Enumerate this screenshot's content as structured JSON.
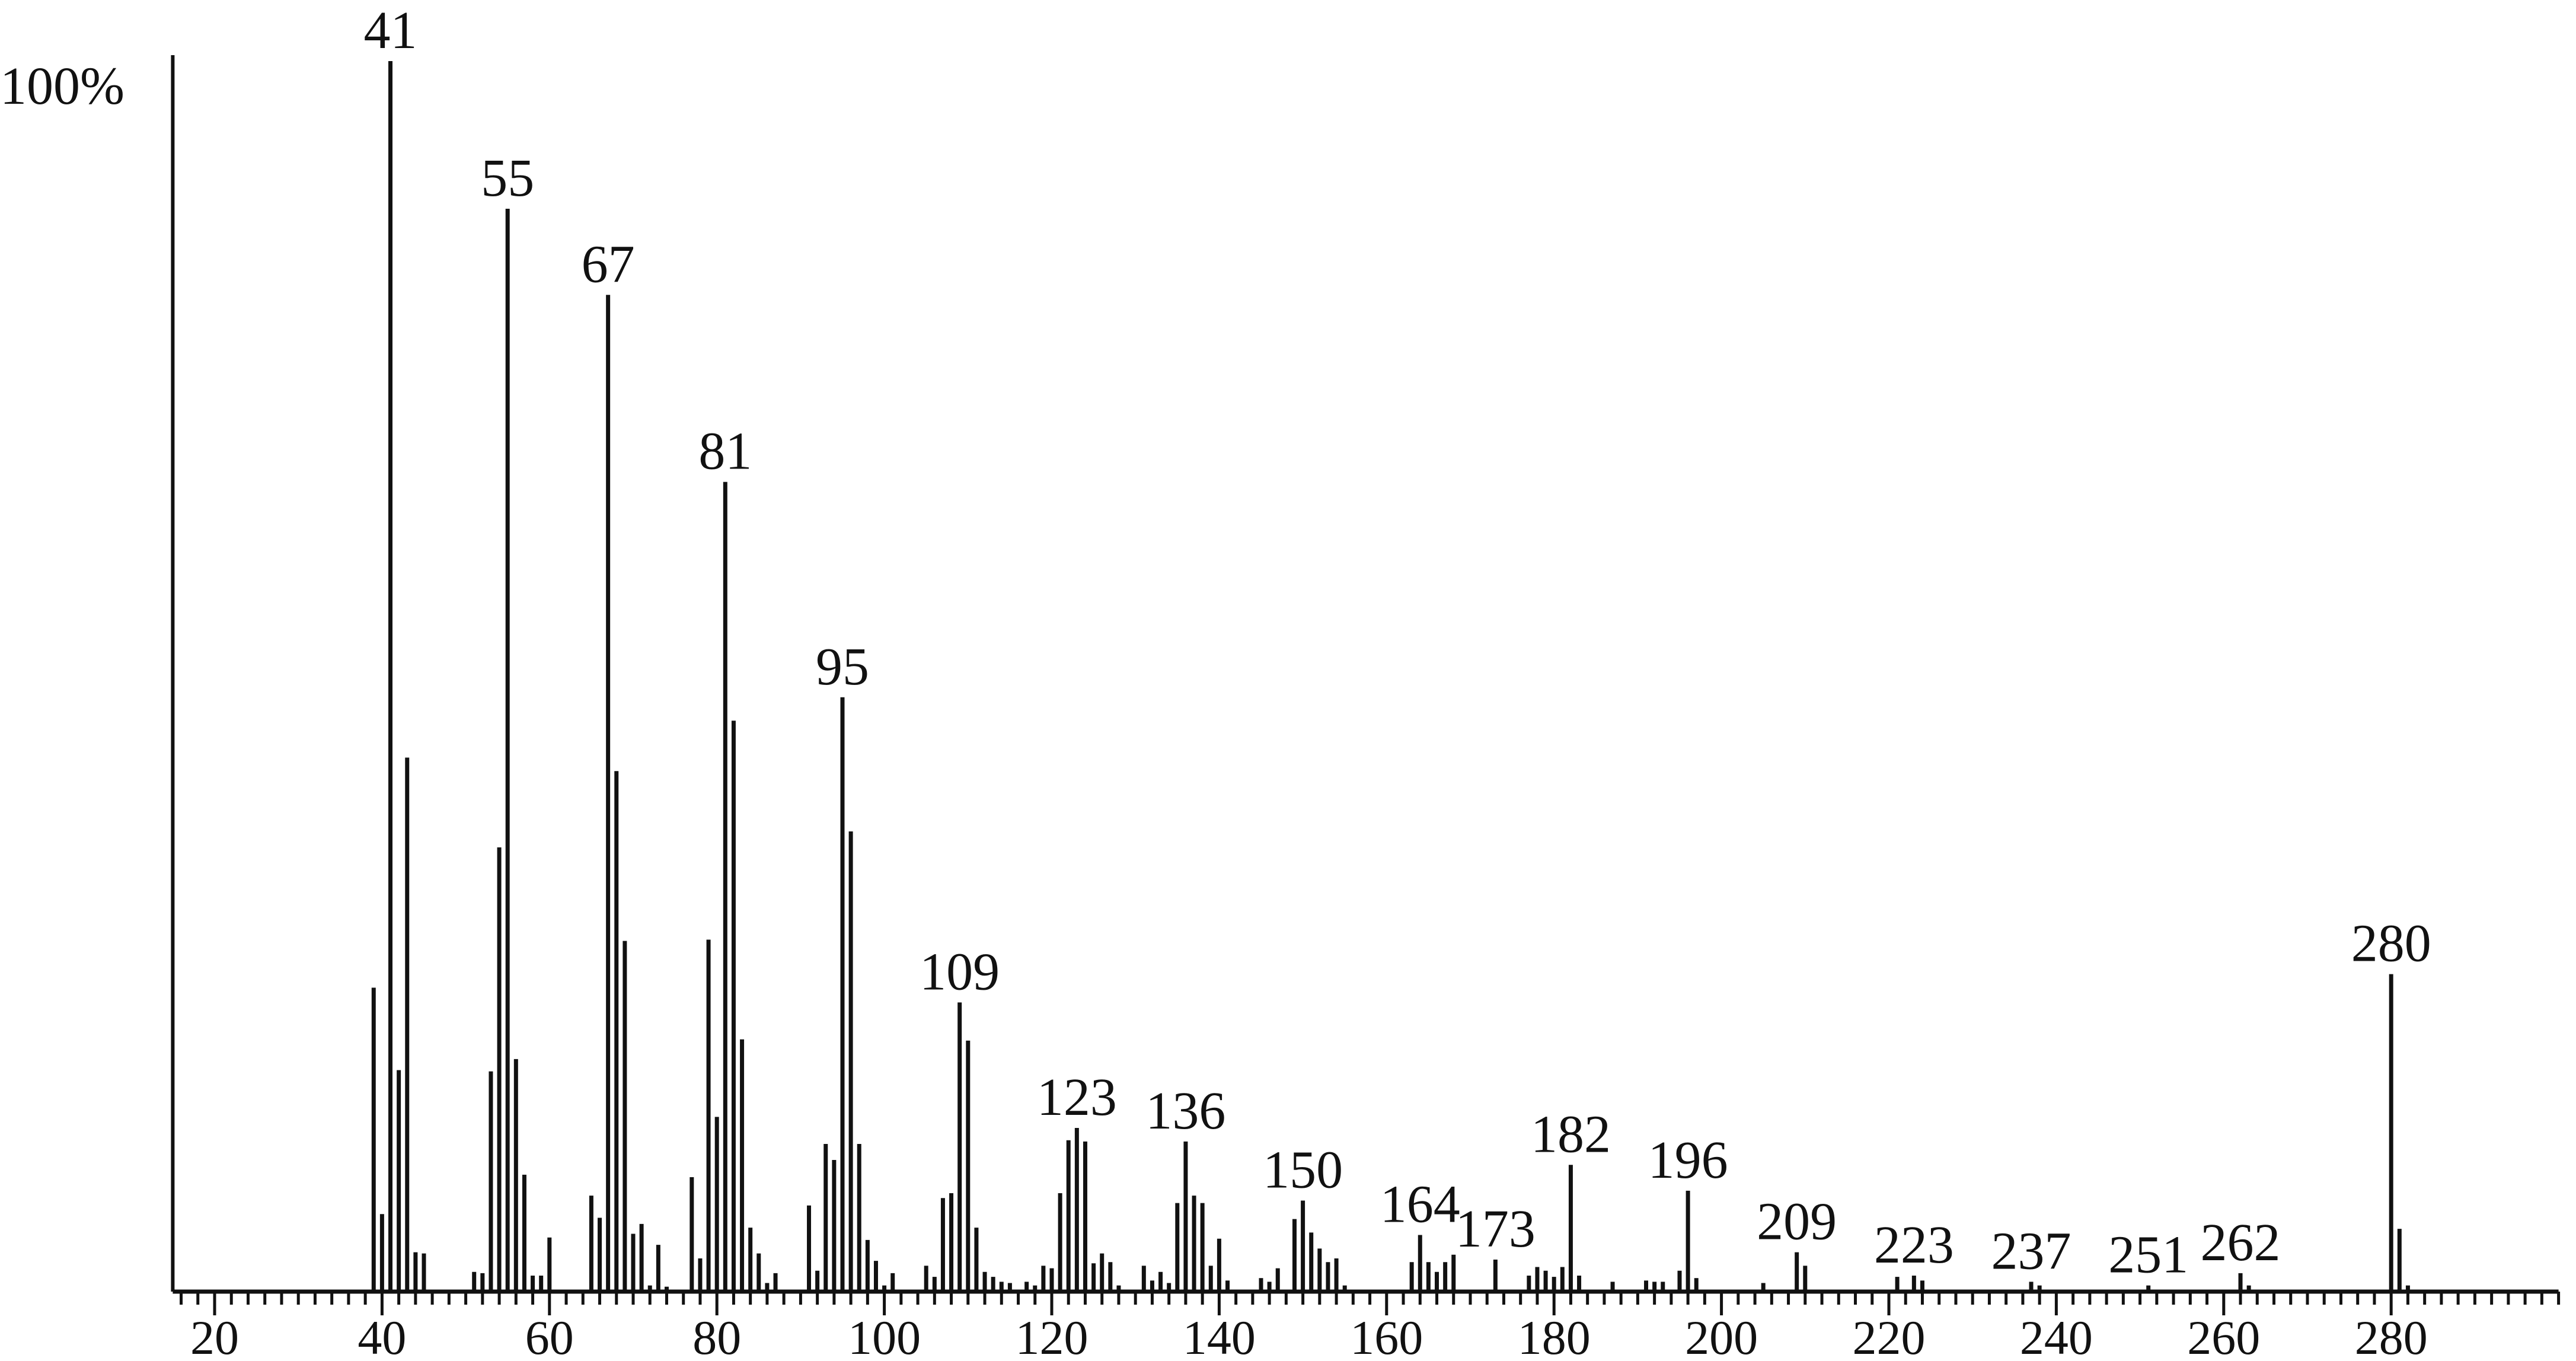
{
  "chart_data": {
    "type": "bar",
    "title": "",
    "xlabel": "",
    "ylabel": "",
    "y_top_label": "100%",
    "xlim": [
      15,
      300
    ],
    "ylim": [
      0,
      100
    ],
    "x_ticks": [
      20,
      40,
      60,
      80,
      100,
      120,
      140,
      160,
      180,
      200,
      220,
      240,
      260,
      280
    ],
    "minor_tick_step": 2,
    "grid": false,
    "bar_color": "#111111",
    "labeled_peaks": [
      41,
      55,
      67,
      81,
      95,
      109,
      123,
      136,
      150,
      164,
      173,
      182,
      196,
      209,
      223,
      237,
      251,
      262,
      280
    ],
    "peaks": [
      [
        39,
        24.7
      ],
      [
        40,
        6.3
      ],
      [
        41,
        100
      ],
      [
        42,
        18
      ],
      [
        43,
        43.4
      ],
      [
        44,
        3.2
      ],
      [
        45,
        3.1
      ],
      [
        51,
        1.6
      ],
      [
        52,
        1.5
      ],
      [
        53,
        17.9
      ],
      [
        54,
        36.1
      ],
      [
        55,
        88
      ],
      [
        56,
        18.9
      ],
      [
        57,
        9.5
      ],
      [
        58,
        1.3
      ],
      [
        59,
        1.3
      ],
      [
        60,
        4.4
      ],
      [
        65,
        7.8
      ],
      [
        66,
        6
      ],
      [
        67,
        81
      ],
      [
        68,
        42.3
      ],
      [
        69,
        28.5
      ],
      [
        70,
        4.7
      ],
      [
        71,
        5.5
      ],
      [
        72,
        0.5
      ],
      [
        73,
        3.8
      ],
      [
        74,
        0.4
      ],
      [
        77,
        9.3
      ],
      [
        78,
        2.7
      ],
      [
        79,
        28.6
      ],
      [
        80,
        14.2
      ],
      [
        81,
        65.8
      ],
      [
        82,
        46.4
      ],
      [
        83,
        20.5
      ],
      [
        84,
        5.2
      ],
      [
        85,
        3.1
      ],
      [
        86,
        0.7
      ],
      [
        87,
        1.5
      ],
      [
        91,
        7
      ],
      [
        92,
        1.7
      ],
      [
        93,
        12
      ],
      [
        94,
        10.7
      ],
      [
        95,
        48.3
      ],
      [
        96,
        37.4
      ],
      [
        97,
        12
      ],
      [
        98,
        4.2
      ],
      [
        99,
        2.5
      ],
      [
        100,
        0.5
      ],
      [
        101,
        1.5
      ],
      [
        105,
        2.1
      ],
      [
        106,
        1.2
      ],
      [
        107,
        7.6
      ],
      [
        108,
        8
      ],
      [
        109,
        23.5
      ],
      [
        110,
        20.4
      ],
      [
        111,
        5.2
      ],
      [
        112,
        1.6
      ],
      [
        113,
        1.2
      ],
      [
        114,
        0.8
      ],
      [
        115,
        0.7
      ],
      [
        117,
        0.8
      ],
      [
        118,
        0.5
      ],
      [
        119,
        2.1
      ],
      [
        120,
        1.9
      ],
      [
        121,
        8
      ],
      [
        122,
        12.3
      ],
      [
        123,
        13.3
      ],
      [
        124,
        12.2
      ],
      [
        125,
        2.3
      ],
      [
        126,
        3.1
      ],
      [
        127,
        2.4
      ],
      [
        128,
        0.5
      ],
      [
        131,
        2.1
      ],
      [
        132,
        0.9
      ],
      [
        133,
        1.6
      ],
      [
        134,
        0.7
      ],
      [
        135,
        7.2
      ],
      [
        136,
        12.2
      ],
      [
        137,
        7.8
      ],
      [
        138,
        7.2
      ],
      [
        139,
        2.1
      ],
      [
        140,
        4.3
      ],
      [
        141,
        0.9
      ],
      [
        145,
        1.1
      ],
      [
        146,
        0.8
      ],
      [
        147,
        1.9
      ],
      [
        149,
        5.9
      ],
      [
        150,
        7.4
      ],
      [
        151,
        4.8
      ],
      [
        152,
        3.5
      ],
      [
        153,
        2.4
      ],
      [
        154,
        2.7
      ],
      [
        155,
        0.5
      ],
      [
        163,
        2.4
      ],
      [
        164,
        4.6
      ],
      [
        165,
        2.4
      ],
      [
        166,
        1.6
      ],
      [
        167,
        2.4
      ],
      [
        168,
        3
      ],
      [
        173,
        2.6
      ],
      [
        177,
        1.3
      ],
      [
        178,
        2
      ],
      [
        179,
        1.7
      ],
      [
        180,
        1.2
      ],
      [
        181,
        2
      ],
      [
        182,
        10.3
      ],
      [
        183,
        1.3
      ],
      [
        187,
        0.8
      ],
      [
        191,
        0.9
      ],
      [
        192,
        0.8
      ],
      [
        193,
        0.8
      ],
      [
        195,
        1.7
      ],
      [
        196,
        8.2
      ],
      [
        197,
        1.1
      ],
      [
        205,
        0.7
      ],
      [
        209,
        3.2
      ],
      [
        210,
        2.1
      ],
      [
        221,
        1.2
      ],
      [
        223,
        1.3
      ],
      [
        224,
        0.9
      ],
      [
        237,
        0.8
      ],
      [
        238,
        0.5
      ],
      [
        251,
        0.5
      ],
      [
        262,
        1.5
      ],
      [
        263,
        0.5
      ],
      [
        280,
        25.8
      ],
      [
        281,
        5.1
      ],
      [
        282,
        0.5
      ]
    ]
  }
}
